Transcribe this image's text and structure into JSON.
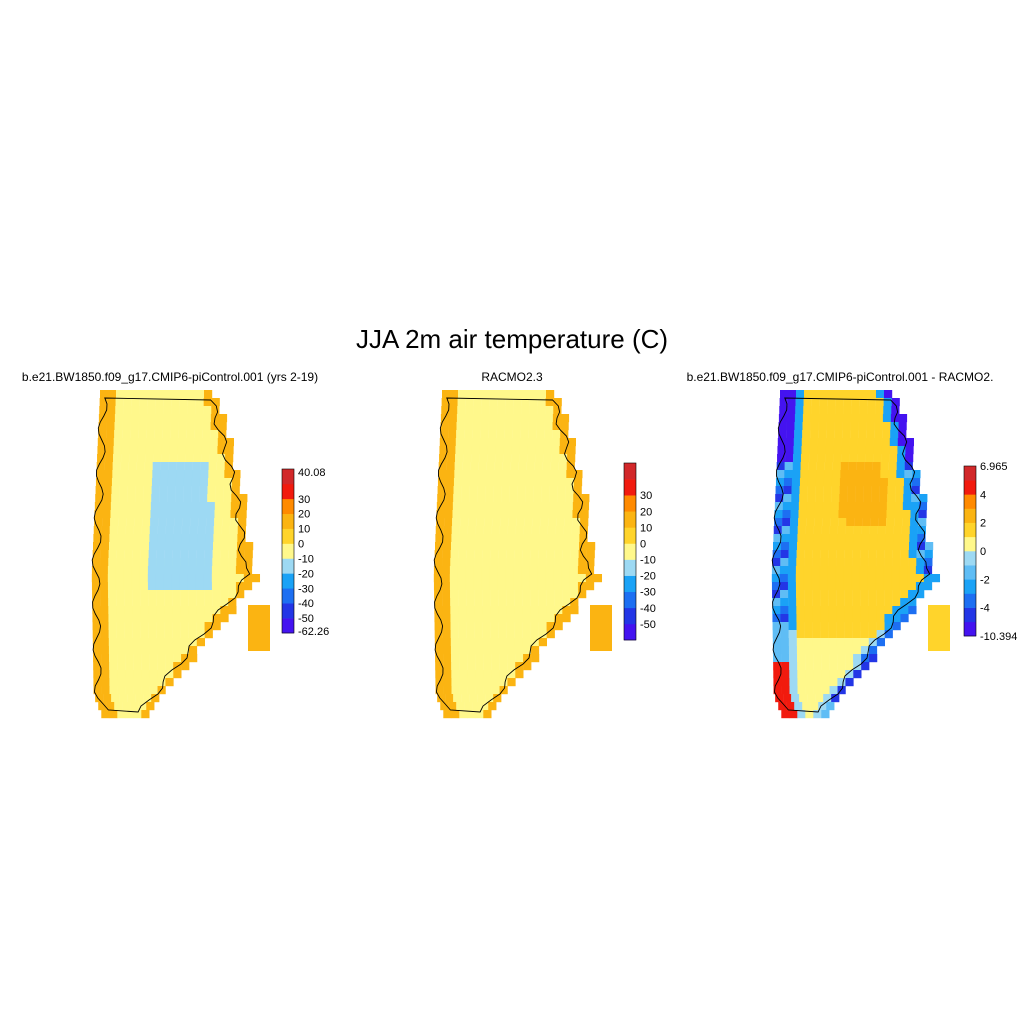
{
  "figure_title": "JJA 2m air temperature (C)",
  "chart_data": [
    {
      "type": "heatmap",
      "title": "b.e21.BW1850.f09_g17.CMIP6-piControl.001 (yrs 2-19)",
      "colorbar": {
        "colors": [
          "#4413f0",
          "#2336e6",
          "#1d6ff2",
          "#1aa2f6",
          "#9dd9f3",
          "#fff88b",
          "#ffd42b",
          "#fbb412",
          "#ff8a00",
          "#f11a0e",
          "#d2282a"
        ],
        "labels": [
          "-62.26",
          "-50",
          "-40",
          "-30",
          "-20",
          "-10",
          "0",
          "10",
          "20",
          "30",
          "40.08"
        ],
        "min": -62.26,
        "max": 40.08
      }
    },
    {
      "type": "heatmap",
      "title": "RACMO2.3",
      "colorbar": {
        "colors": [
          "#4413f0",
          "#2336e6",
          "#1d6ff2",
          "#1aa2f6",
          "#9dd9f3",
          "#fff88b",
          "#ffd42b",
          "#fbb412",
          "#ff8a00",
          "#f11a0e",
          "#d2282a"
        ],
        "labels": [
          "-50",
          "-40",
          "-30",
          "-20",
          "-10",
          "0",
          "10",
          "20",
          "30"
        ]
      }
    },
    {
      "type": "heatmap",
      "title": "b.e21.BW1850.f09_g17.CMIP6-piControl.001 - RACMO2.",
      "colorbar": {
        "colors": [
          "#4413f0",
          "#2336e6",
          "#1d6ff2",
          "#1aa2f6",
          "#5fbdf5",
          "#9dd9f3",
          "#fff88b",
          "#ffd42b",
          "#fbb412",
          "#ff8a00",
          "#f11a0e",
          "#d2282a"
        ],
        "labels": [
          "-10.394",
          "-4",
          "-2",
          "0",
          "2",
          "4",
          "6.965"
        ],
        "min": -10.394,
        "max": 6.965
      }
    }
  ]
}
